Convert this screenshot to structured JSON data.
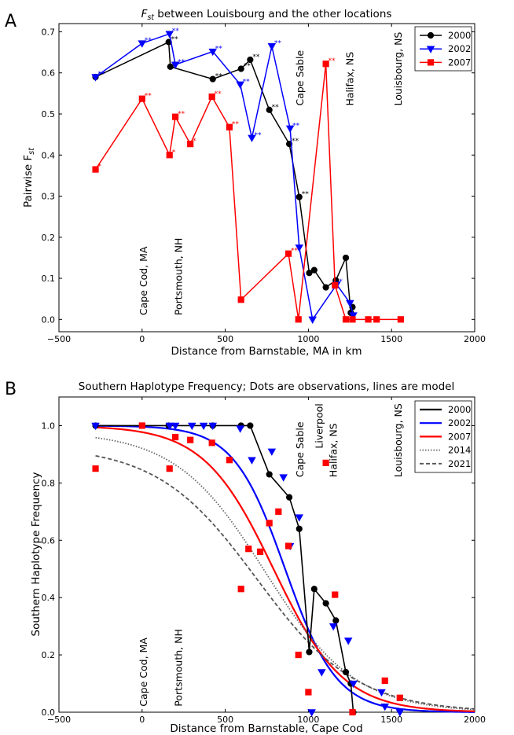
{
  "chart_data": [
    {
      "panel": "A",
      "type": "line",
      "title_main": "F",
      "title_sub": "st",
      "title_rest": " between Louisbourg and the other locations",
      "xlabel": "Distance from Barnstable, MA in km",
      "ylabel_main": "Pairwise F",
      "ylabel_sub": "st",
      "xlim": [
        -500,
        2000
      ],
      "ylim": [
        -0.03,
        0.72
      ],
      "xticks": [
        -500,
        0,
        500,
        1000,
        1500,
        2000
      ],
      "yticks": [
        0.0,
        0.1,
        0.2,
        0.3,
        0.4,
        0.5,
        0.6,
        0.7
      ],
      "xtick_labels": [
        "−500",
        "0",
        "500",
        "1000",
        "1500",
        "2000"
      ],
      "ytick_labels": [
        "0.0",
        "0.1",
        "0.2",
        "0.3",
        "0.4",
        "0.5",
        "0.6",
        "0.7"
      ],
      "legend_position": "top-right",
      "annotations": [
        {
          "text": "Cape Cod, MA",
          "x": 30,
          "y": 0.01
        },
        {
          "text": "Portsmouth, NH",
          "x": 240,
          "y": 0.01
        },
        {
          "text": "Cape Sable",
          "x": 970,
          "y": 0.52
        },
        {
          "text": "Halifax, NS",
          "x": 1270,
          "y": 0.52
        },
        {
          "text": "Louisbourg, NS",
          "x": 1560,
          "y": 0.52
        }
      ],
      "series": [
        {
          "name": "2000",
          "color": "#000000",
          "marker": "circle",
          "x": [
            -280,
            160,
            170,
            425,
            595,
            650,
            765,
            885,
            945,
            1005,
            1035,
            1105,
            1165,
            1225,
            1255,
            1265
          ],
          "y": [
            0.59,
            0.675,
            0.615,
            0.585,
            0.61,
            0.632,
            0.51,
            0.427,
            0.298,
            0.113,
            0.12,
            0.078,
            0.095,
            0.15,
            0.016,
            0.03
          ],
          "stars": [
            "**",
            "**",
            "**",
            "**",
            "**",
            "**",
            "**",
            "**",
            "**",
            "",
            "",
            "",
            "",
            "",
            "",
            ""
          ]
        },
        {
          "name": "2002",
          "color": "#0000ff",
          "marker": "triangle-down",
          "x": [
            -280,
            0,
            165,
            200,
            425,
            590,
            660,
            780,
            890,
            945,
            1025,
            1170,
            1250,
            1270
          ],
          "y": [
            0.59,
            0.672,
            0.695,
            0.62,
            0.652,
            0.572,
            0.442,
            0.665,
            0.465,
            0.175,
            0.0,
            0.085,
            0.04,
            0.01
          ],
          "stars": [
            "**",
            "**",
            "**",
            "**",
            "**",
            "**",
            "**",
            "**",
            "**",
            "",
            "",
            "*",
            "",
            ""
          ]
        },
        {
          "name": "2007",
          "color": "#ff0000",
          "marker": "square",
          "x": [
            -280,
            0,
            165,
            200,
            290,
            420,
            525,
            595,
            880,
            940,
            1105,
            1160,
            1225,
            1265,
            1360,
            1410,
            1555
          ],
          "y": [
            0.365,
            0.537,
            0.4,
            0.493,
            0.427,
            0.542,
            0.468,
            0.048,
            0.16,
            0.0,
            0.622,
            0.083,
            0.0,
            0.0,
            0.0,
            0.0,
            0.0
          ],
          "stars": [
            "*",
            "**",
            "*",
            "**",
            "*",
            "**",
            "**",
            "",
            "**",
            "",
            "**",
            "",
            "",
            "",
            "",
            "",
            ""
          ]
        }
      ]
    },
    {
      "panel": "B",
      "type": "line",
      "title": "Southern Haplotype Frequency; Dots are observations, lines are model",
      "xlabel": "Distance from Barnstable, Cape Cod",
      "ylabel": "Southern Haplotype Frequency",
      "xlim": [
        -500,
        2000
      ],
      "ylim": [
        0.0,
        1.1
      ],
      "xticks": [
        -500,
        0,
        500,
        1000,
        1500,
        2000
      ],
      "yticks": [
        0.0,
        0.2,
        0.4,
        0.6,
        0.8,
        1.0
      ],
      "xtick_labels": [
        "−500",
        "0",
        "500",
        "1000",
        "1500",
        "2000"
      ],
      "ytick_labels": [
        "0.0",
        "0.2",
        "0.4",
        "0.6",
        "0.8",
        "1.0"
      ],
      "legend_position": "top-right",
      "annotations": [
        {
          "text": "Cape Cod, MA",
          "x": 30,
          "y": 0.02
        },
        {
          "text": "Portsmouth, NH",
          "x": 240,
          "y": 0.02
        },
        {
          "text": "Cape Sable",
          "x": 970,
          "y": 0.82
        },
        {
          "text": "Liverpool",
          "x": 1085,
          "y": 0.92
        },
        {
          "text": "Halifax, NS",
          "x": 1170,
          "y": 0.82
        },
        {
          "text": "Louisbourg, NS",
          "x": 1560,
          "y": 0.82
        }
      ],
      "observations": [
        {
          "name": "2000",
          "color": "#000000",
          "marker": "circle",
          "connected": true,
          "x": [
            -280,
            160,
            425,
            595,
            650,
            765,
            885,
            945,
            1005,
            1035,
            1105,
            1165,
            1225,
            1255,
            1270
          ],
          "y": [
            1.0,
            1.0,
            1.0,
            1.0,
            1.0,
            0.83,
            0.75,
            0.64,
            0.21,
            0.43,
            0.38,
            0.32,
            0.14,
            0.1,
            0.0
          ]
        },
        {
          "name": "2002",
          "color": "#0000ff",
          "marker": "triangle-down",
          "x": [
            -280,
            165,
            200,
            300,
            370,
            425,
            590,
            660,
            780,
            850,
            890,
            945,
            1020,
            1080,
            1150,
            1240,
            1270,
            1440,
            1460,
            1550
          ],
          "y": [
            1.0,
            1.0,
            1.0,
            1.0,
            1.0,
            1.0,
            0.99,
            0.88,
            0.91,
            0.82,
            0.58,
            0.68,
            0.0,
            0.14,
            0.3,
            0.25,
            0.1,
            0.07,
            0.02,
            0.0
          ]
        },
        {
          "name": "2007",
          "color": "#ff0000",
          "marker": "square",
          "x": [
            -280,
            0,
            165,
            200,
            290,
            420,
            525,
            595,
            640,
            710,
            765,
            820,
            880,
            940,
            1000,
            1105,
            1160,
            1265,
            1460,
            1550
          ],
          "y": [
            0.85,
            1.0,
            0.85,
            0.96,
            0.95,
            0.94,
            0.88,
            0.43,
            0.57,
            0.56,
            0.66,
            0.7,
            0.58,
            0.2,
            0.07,
            0.87,
            0.41,
            0.0,
            0.11,
            0.05
          ]
        }
      ],
      "model": [
        {
          "name": "2000",
          "color": "#000000",
          "style": "solid"
        },
        {
          "name": "2002",
          "color": "#0000ff",
          "style": "solid",
          "center": 860,
          "width": 155,
          "amp": 1.0
        },
        {
          "name": "2007",
          "color": "#ff0000",
          "style": "solid",
          "center": 790,
          "width": 210,
          "amp": 1.0
        },
        {
          "name": "2014",
          "color": "#666666",
          "style": "dotted",
          "center": 740,
          "width": 270,
          "amp": 0.98
        },
        {
          "name": "2021",
          "color": "#555555",
          "style": "dashed",
          "center": 690,
          "width": 300,
          "amp": 0.93
        }
      ]
    }
  ]
}
